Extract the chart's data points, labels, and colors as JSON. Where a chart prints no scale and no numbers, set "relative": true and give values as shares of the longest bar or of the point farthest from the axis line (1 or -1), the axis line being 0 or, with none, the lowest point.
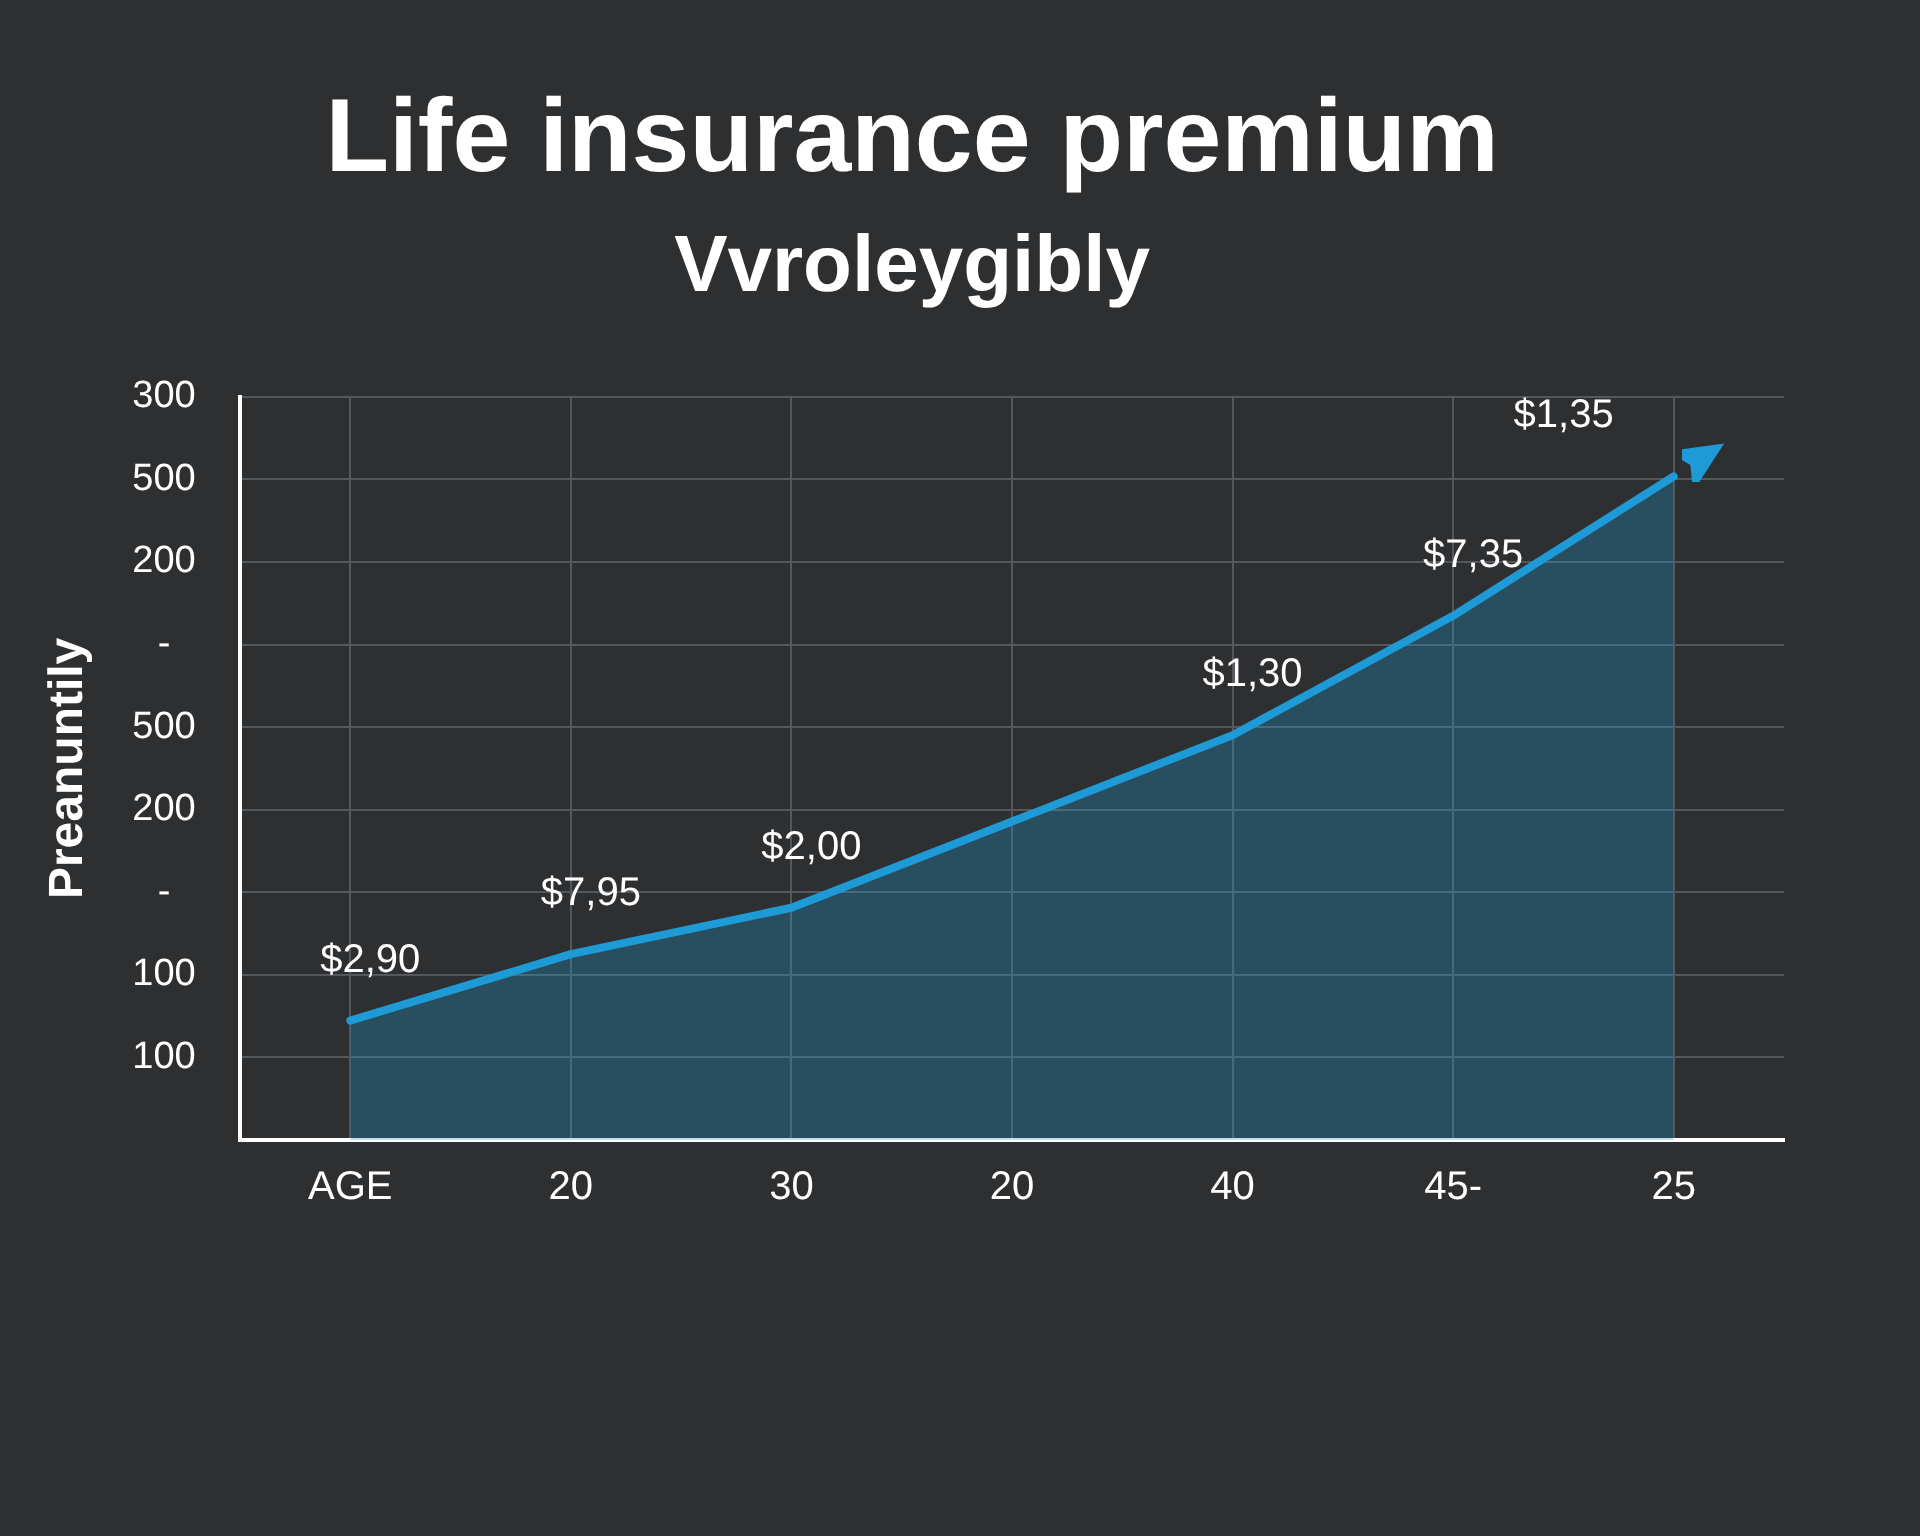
{
  "chart_data": {
    "type": "area",
    "title": "Life insurance premium",
    "subtitle": "Vvroleygibly",
    "ylabel": "Preanuntily",
    "categories": [
      "AGE",
      "20",
      "30",
      "20",
      "40",
      "45-",
      "25"
    ],
    "relative": true,
    "grid": true,
    "legend": false,
    "series": [
      {
        "type": "area",
        "color": "#1e9bd7",
        "values": [
          0.18,
          0.28,
          0.35,
          0.48,
          0.61,
          0.79,
          1
        ]
      }
    ],
    "annotations": [
      "300",
      "500",
      "200",
      "-",
      "500",
      "200",
      "-",
      "100",
      "100",
      {
        "text": "$2,90",
        "x": "AGE",
        "y": 0.18
      },
      {
        "text": "$7,95",
        "x": "20",
        "y": 0.28
      },
      {
        "text": "$2,00",
        "x": "30",
        "y": 0.35
      },
      {
        "text": "$1,30",
        "x": "40",
        "y": 0.61
      },
      {
        "text": "$7,35",
        "x": "45-",
        "y": 0.79
      },
      {
        "text": "$1,35",
        "x": "25",
        "y": 1
      }
    ]
  }
}
